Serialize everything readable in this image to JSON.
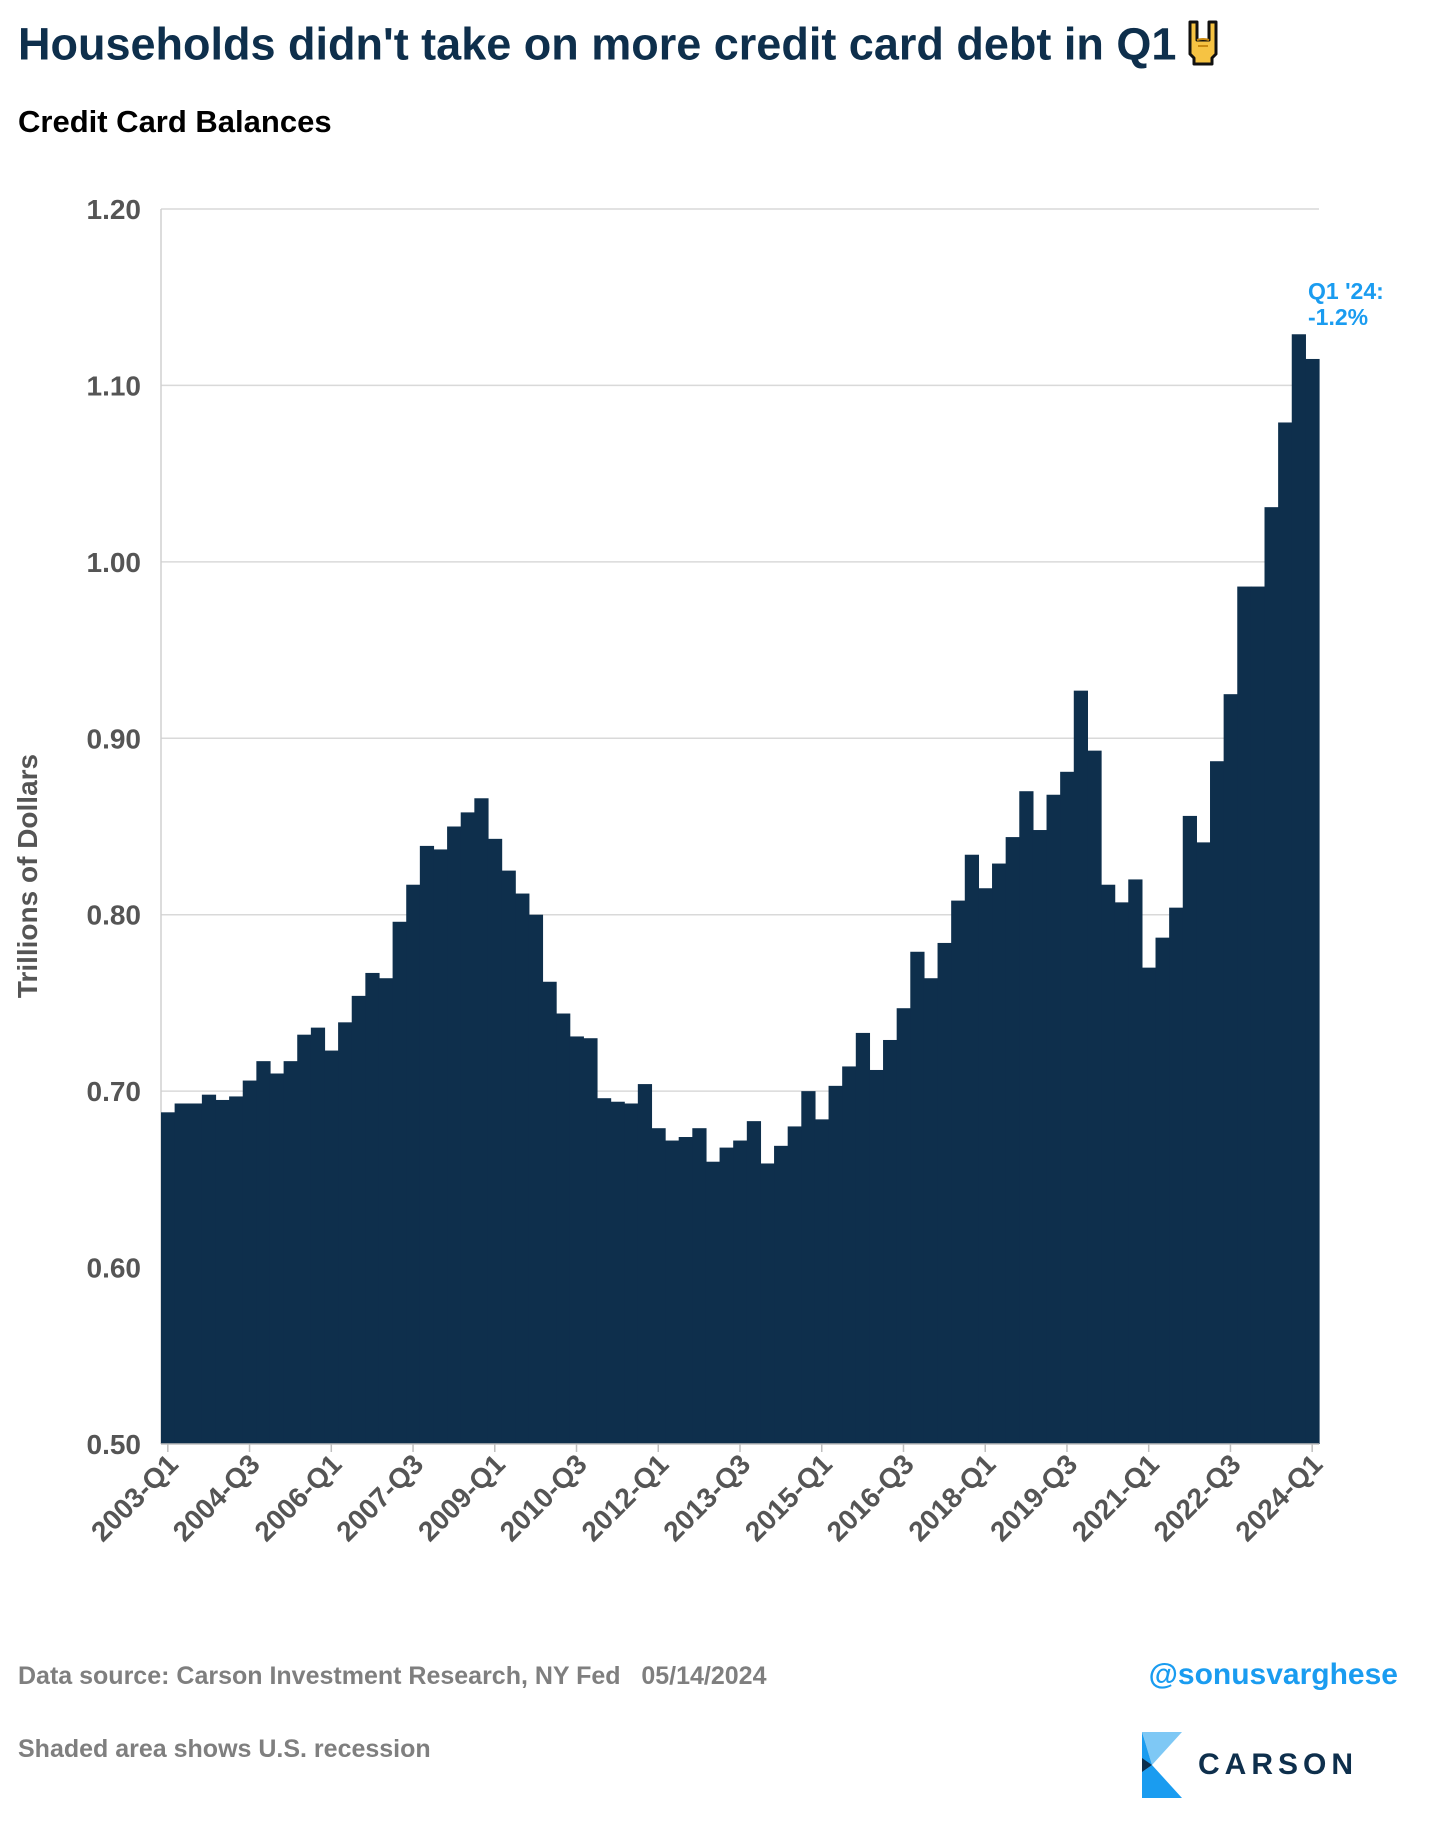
{
  "header": {
    "title": "Households didn't take on more credit card debt in Q1",
    "title_emoji": "sign-of-the-horns-icon",
    "subtitle": "Credit Card Balances"
  },
  "chart_data": {
    "type": "bar",
    "title": "Credit Card Balances",
    "ylabel": "Trillions of Dollars",
    "xlabel": "",
    "ylim": [
      0.5,
      1.2
    ],
    "yticks": [
      "0.50",
      "0.60",
      "0.70",
      "0.80",
      "0.90",
      "1.00",
      "1.10",
      "1.20"
    ],
    "grid": true,
    "bar_color": "#0e2f4c",
    "annotation_color": "#1a9cf0",
    "annotation": [
      "Q1 '24:",
      "-1.2%"
    ],
    "xtick_labels": [
      "2003-Q1",
      "2004-Q3",
      "2006-Q1",
      "2007-Q3",
      "2009-Q1",
      "2010-Q3",
      "2012-Q1",
      "2013-Q3",
      "2015-Q1",
      "2016-Q3",
      "2018-Q1",
      "2019-Q3",
      "2021-Q1",
      "2022-Q3",
      "2024-Q1"
    ],
    "start_year": 2003,
    "values": [
      0.688,
      0.693,
      0.693,
      0.698,
      0.695,
      0.697,
      0.706,
      0.717,
      0.71,
      0.717,
      0.732,
      0.736,
      0.723,
      0.739,
      0.754,
      0.767,
      0.764,
      0.796,
      0.817,
      0.839,
      0.837,
      0.85,
      0.858,
      0.866,
      0.843,
      0.825,
      0.812,
      0.8,
      0.762,
      0.744,
      0.731,
      0.73,
      0.696,
      0.694,
      0.693,
      0.704,
      0.679,
      0.672,
      0.674,
      0.679,
      0.66,
      0.668,
      0.672,
      0.683,
      0.659,
      0.669,
      0.68,
      0.7,
      0.684,
      0.703,
      0.714,
      0.733,
      0.712,
      0.729,
      0.747,
      0.779,
      0.764,
      0.784,
      0.808,
      0.834,
      0.815,
      0.829,
      0.844,
      0.87,
      0.848,
      0.868,
      0.881,
      0.927,
      0.893,
      0.817,
      0.807,
      0.82,
      0.77,
      0.787,
      0.804,
      0.856,
      0.841,
      0.887,
      0.925,
      0.986,
      0.986,
      1.031,
      1.079,
      1.129,
      1.115
    ]
  },
  "footer": {
    "source": "Data source: Carson Investment Research, NY Fed   05/14/2024",
    "note": "Shaded area shows U.S. recession",
    "handle": "@sonusvarghese",
    "logo_text": "CARSON"
  }
}
